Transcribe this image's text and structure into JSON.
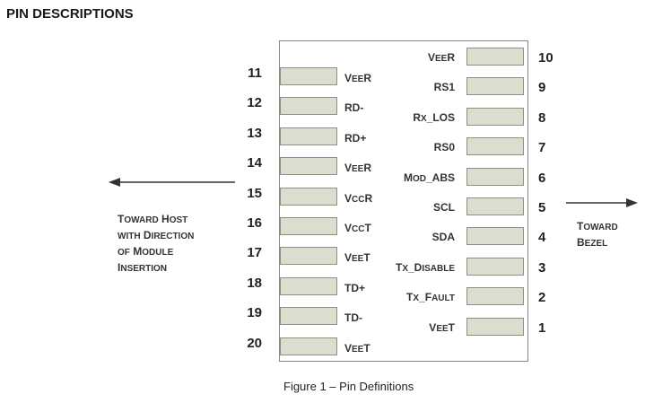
{
  "heading": "PIN DESCRIPTIONS",
  "left_pins": [
    {
      "num": "11",
      "name": [
        [
          "V",
          false
        ],
        [
          "EE",
          true
        ],
        [
          "R",
          false
        ]
      ]
    },
    {
      "num": "12",
      "name": [
        [
          "RD-",
          false
        ]
      ]
    },
    {
      "num": "13",
      "name": [
        [
          "RD+",
          false
        ]
      ]
    },
    {
      "num": "14",
      "name": [
        [
          "V",
          false
        ],
        [
          "EE",
          true
        ],
        [
          "R",
          false
        ]
      ]
    },
    {
      "num": "15",
      "name": [
        [
          "V",
          false
        ],
        [
          "CC",
          true
        ],
        [
          "R",
          false
        ]
      ]
    },
    {
      "num": "16",
      "name": [
        [
          "V",
          false
        ],
        [
          "CC",
          true
        ],
        [
          "T",
          false
        ]
      ]
    },
    {
      "num": "17",
      "name": [
        [
          "V",
          false
        ],
        [
          "EE",
          true
        ],
        [
          "T",
          false
        ]
      ]
    },
    {
      "num": "18",
      "name": [
        [
          "TD+",
          false
        ]
      ]
    },
    {
      "num": "19",
      "name": [
        [
          "TD-",
          false
        ]
      ]
    },
    {
      "num": "20",
      "name": [
        [
          "V",
          false
        ],
        [
          "EE",
          true
        ],
        [
          "T",
          false
        ]
      ]
    }
  ],
  "right_pins": [
    {
      "num": "10",
      "name": [
        [
          "V",
          false
        ],
        [
          "EE",
          true
        ],
        [
          "R",
          false
        ]
      ]
    },
    {
      "num": "9",
      "name": [
        [
          "RS1",
          false
        ]
      ]
    },
    {
      "num": "8",
      "name": [
        [
          "R",
          false
        ],
        [
          "X",
          true
        ],
        [
          "_LOS",
          false
        ]
      ]
    },
    {
      "num": "7",
      "name": [
        [
          "RS0",
          false
        ]
      ]
    },
    {
      "num": "6",
      "name": [
        [
          "M",
          false
        ],
        [
          "OD",
          true
        ],
        [
          "_ABS",
          false
        ]
      ]
    },
    {
      "num": "5",
      "name": [
        [
          "SCL",
          false
        ]
      ]
    },
    {
      "num": "4",
      "name": [
        [
          "SDA",
          false
        ]
      ]
    },
    {
      "num": "3",
      "name": [
        [
          "T",
          false
        ],
        [
          "X",
          true
        ],
        [
          "_D",
          false
        ],
        [
          "ISABLE",
          true
        ]
      ]
    },
    {
      "num": "2",
      "name": [
        [
          "T",
          false
        ],
        [
          "X",
          true
        ],
        [
          "_F",
          false
        ],
        [
          "AULT",
          true
        ]
      ]
    },
    {
      "num": "1",
      "name": [
        [
          "V",
          false
        ],
        [
          "EE",
          true
        ],
        [
          "T",
          false
        ]
      ]
    }
  ],
  "left_direction": [
    [
      [
        "T",
        false
      ],
      [
        "OWARD",
        true
      ],
      [
        " H",
        false
      ],
      [
        "OST",
        true
      ]
    ],
    [
      [
        "WITH",
        true
      ],
      [
        " D",
        false
      ],
      [
        "IRECTION",
        true
      ]
    ],
    [
      [
        "OF",
        true
      ],
      [
        " M",
        false
      ],
      [
        "ODULE",
        true
      ]
    ],
    [
      [
        "I",
        false
      ],
      [
        "NSERTION",
        true
      ]
    ]
  ],
  "right_direction": [
    [
      [
        "T",
        false
      ],
      [
        "OWARD",
        true
      ]
    ],
    [
      [
        "B",
        false
      ],
      [
        "EZEL",
        true
      ]
    ]
  ],
  "caption": "Figure 1 – Pin Definitions"
}
